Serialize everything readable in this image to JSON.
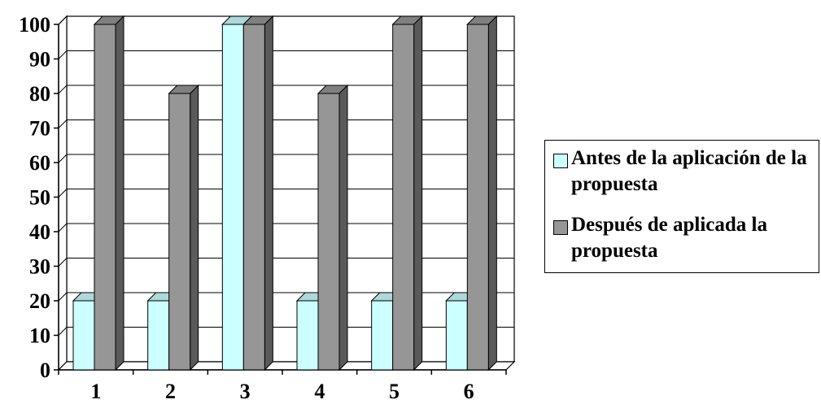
{
  "chart_data": {
    "type": "bar",
    "categories": [
      "1",
      "2",
      "3",
      "4",
      "5",
      "6"
    ],
    "series": [
      {
        "name": "Antes de la aplicación de la propuesta",
        "values": [
          20,
          20,
          100,
          20,
          20,
          20
        ],
        "color": "#CCFFFF"
      },
      {
        "name": "Después de aplicada la propuesta",
        "values": [
          100,
          80,
          100,
          80,
          100,
          100
        ],
        "color": "#969696"
      }
    ],
    "ylim": [
      0,
      100
    ],
    "yticks": [
      "0",
      "10",
      "20",
      "30",
      "40",
      "50",
      "60",
      "70",
      "80",
      "90",
      "100"
    ],
    "grid": true,
    "three_d": true,
    "legend_position": "right"
  }
}
